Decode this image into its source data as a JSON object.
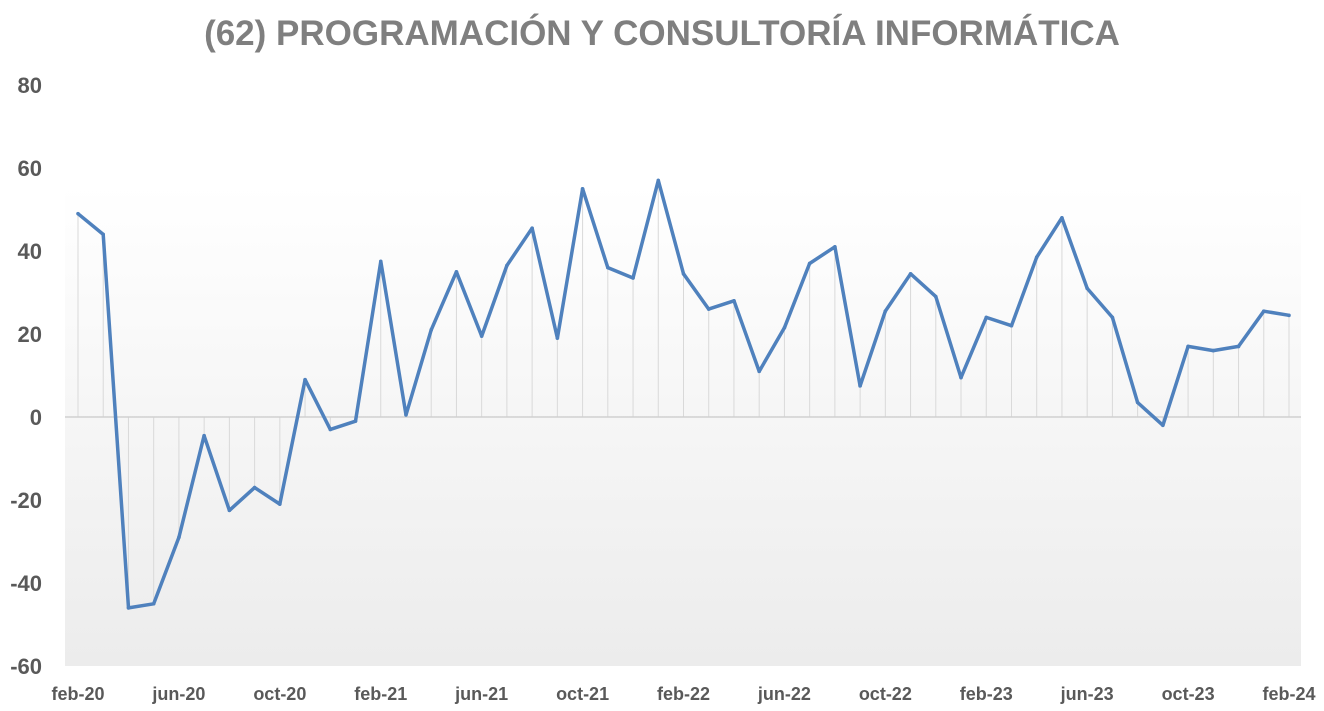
{
  "chart_data": {
    "type": "line",
    "title": "(62) PROGRAMACIÓN Y CONSULTORÍA INFORMÁTICA",
    "xlabel": "",
    "ylabel": "",
    "ylim": [
      -60,
      80
    ],
    "yticks": [
      80,
      60,
      40,
      20,
      0,
      -20,
      -40,
      -60
    ],
    "x_tick_labels": [
      "feb-20",
      "jun-20",
      "oct-20",
      "feb-21",
      "jun-21",
      "oct-21",
      "feb-22",
      "jun-22",
      "oct-22",
      "feb-23",
      "jun-23",
      "oct-23",
      "feb-24"
    ],
    "grid": false,
    "legend": "none",
    "line_color": "#4f81bd",
    "series": [
      {
        "x": [
          "feb-20",
          "mar-20",
          "apr-20",
          "may-20",
          "jun-20",
          "jul-20",
          "aug-20",
          "sep-20",
          "oct-20",
          "nov-20",
          "dec-20",
          "jan-21",
          "feb-21",
          "mar-21",
          "apr-21",
          "may-21",
          "jun-21",
          "jul-21",
          "aug-21",
          "sep-21",
          "oct-21",
          "nov-21",
          "dec-21",
          "jan-22",
          "feb-22",
          "mar-22",
          "apr-22",
          "may-22",
          "jun-22",
          "jul-22",
          "aug-22",
          "sep-22",
          "oct-22",
          "nov-22",
          "dec-22",
          "jan-23",
          "feb-23",
          "mar-23",
          "apr-23",
          "may-23",
          "jun-23",
          "jul-23",
          "aug-23",
          "sep-23",
          "oct-23",
          "nov-23",
          "dec-23",
          "jan-24",
          "feb-24"
        ],
        "values": [
          49,
          44,
          -46,
          -45,
          -29,
          -4.5,
          -22.5,
          -17,
          -21,
          9,
          -3,
          -1,
          37.5,
          0.5,
          21,
          35,
          19.5,
          36.5,
          45.5,
          19,
          55,
          36,
          33.5,
          57,
          34.5,
          26,
          28,
          11,
          21.5,
          37,
          41,
          7.5,
          25.5,
          34.5,
          29,
          9.5,
          24,
          22,
          38.5,
          48,
          31,
          24,
          3.5,
          -2,
          17,
          16,
          17,
          25.5,
          24.5
        ]
      }
    ]
  }
}
